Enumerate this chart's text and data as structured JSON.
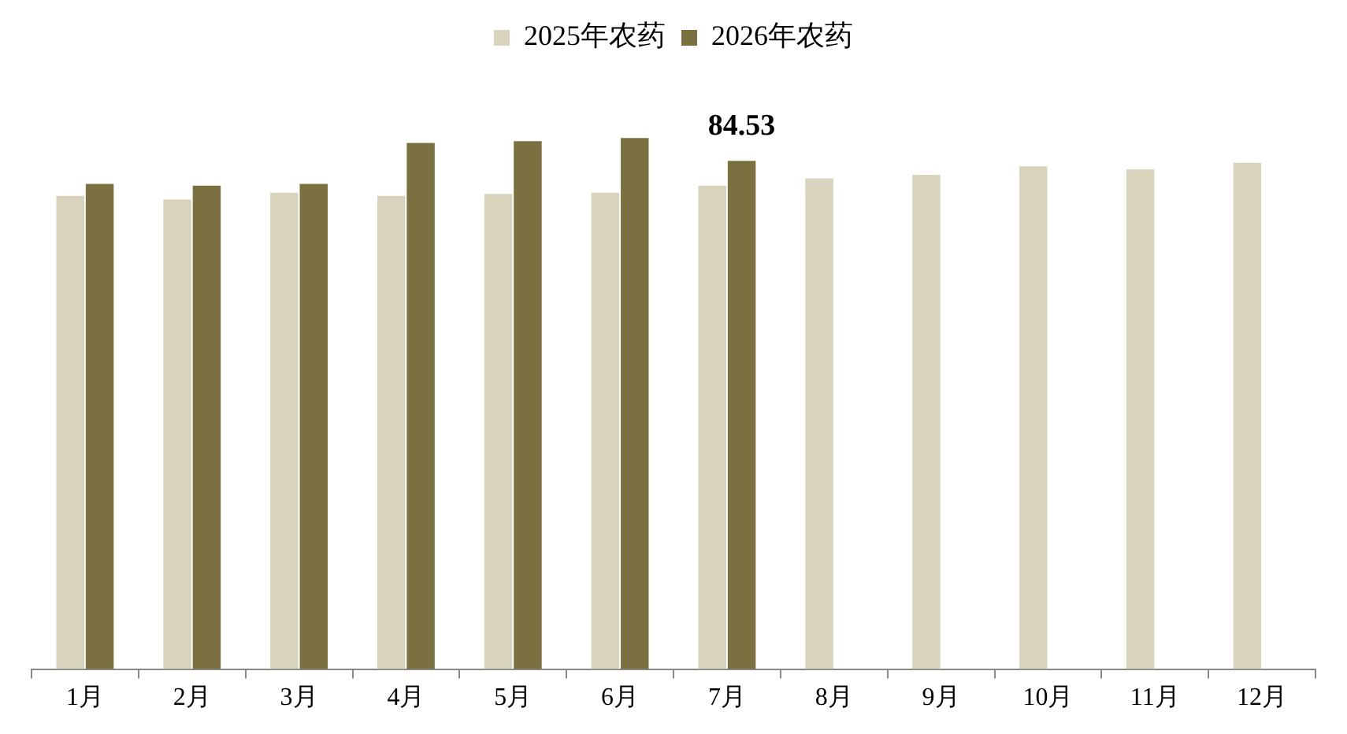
{
  "chart_data": {
    "type": "bar",
    "categories": [
      "1月",
      "2月",
      "3月",
      "4月",
      "5月",
      "6月",
      "7月",
      "8月",
      "9月",
      "10月",
      "11月",
      "12月"
    ],
    "series": [
      {
        "name": "2025年农药",
        "color": "#d8d3bd",
        "values": [
          78.7,
          78.1,
          79.2,
          78.7,
          79.0,
          79.2,
          80.4,
          81.6,
          82.2,
          83.6,
          83.1,
          84.2
        ]
      },
      {
        "name": "2026年农药",
        "color": "#7a7040",
        "values": [
          80.7,
          80.4,
          80.7,
          87.5,
          87.8,
          88.3,
          84.53,
          null,
          null,
          null,
          null,
          null
        ],
        "value_labels": [
          null,
          null,
          null,
          null,
          null,
          null,
          "84.53",
          null,
          null,
          null,
          null,
          null
        ]
      }
    ],
    "legend": "top",
    "grid": false,
    "tick_labels": "x"
  }
}
